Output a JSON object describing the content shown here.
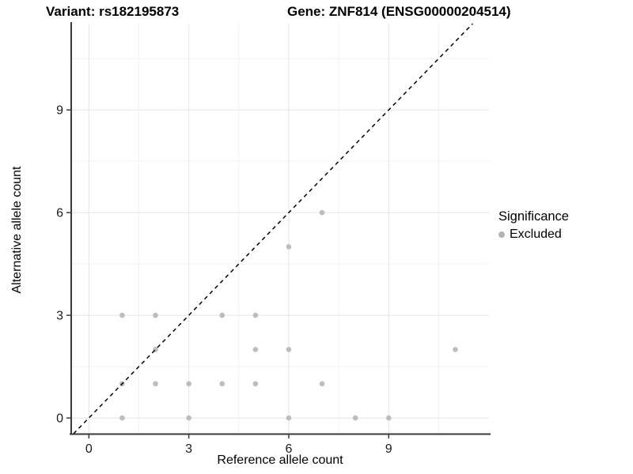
{
  "titles": {
    "variant": "Variant: rs182195873",
    "gene": "Gene: ZNF814 (ENSG00000204514)"
  },
  "chart_data": {
    "type": "scatter",
    "xlabel": "Reference allele count",
    "ylabel": "Alternative allele count",
    "xlim": [
      -0.53,
      12.01
    ],
    "ylim": [
      -0.46,
      11.52
    ],
    "x_ticks": [
      0,
      3,
      6,
      9
    ],
    "y_ticks": [
      0,
      3,
      6,
      9
    ],
    "x_minor": [
      1.5,
      4.5,
      7.5,
      10.5
    ],
    "y_minor": [
      1.5,
      4.5,
      7.5,
      10.5
    ],
    "grid": true,
    "identity_line": {
      "style": "dashed",
      "slope": 1,
      "intercept": 0
    },
    "series": [
      {
        "name": "Excluded",
        "color": "#bdbdbd",
        "points": [
          [
            1,
            0
          ],
          [
            3,
            0
          ],
          [
            6,
            0
          ],
          [
            8,
            0
          ],
          [
            9,
            0
          ],
          [
            1,
            1
          ],
          [
            2,
            1
          ],
          [
            3,
            1
          ],
          [
            4,
            1
          ],
          [
            5,
            1
          ],
          [
            7,
            1
          ],
          [
            2,
            2
          ],
          [
            5,
            2
          ],
          [
            6,
            2
          ],
          [
            11,
            2
          ],
          [
            1,
            3
          ],
          [
            2,
            3
          ],
          [
            4,
            3
          ],
          [
            5,
            3
          ],
          [
            6,
            5
          ],
          [
            7,
            6
          ]
        ]
      }
    ],
    "legend": {
      "title": "Significance",
      "position": "right",
      "items": [
        {
          "label": "Excluded",
          "color": "#b3b3b3"
        }
      ]
    },
    "colors": {
      "point": "#bdbdbd",
      "axis_line": "#3a3a3a",
      "grid_major": "#e4e4e4",
      "grid_minor": "#f2f2f2",
      "tick_text": "#1a1a1a",
      "identity_line": "#000000"
    }
  }
}
